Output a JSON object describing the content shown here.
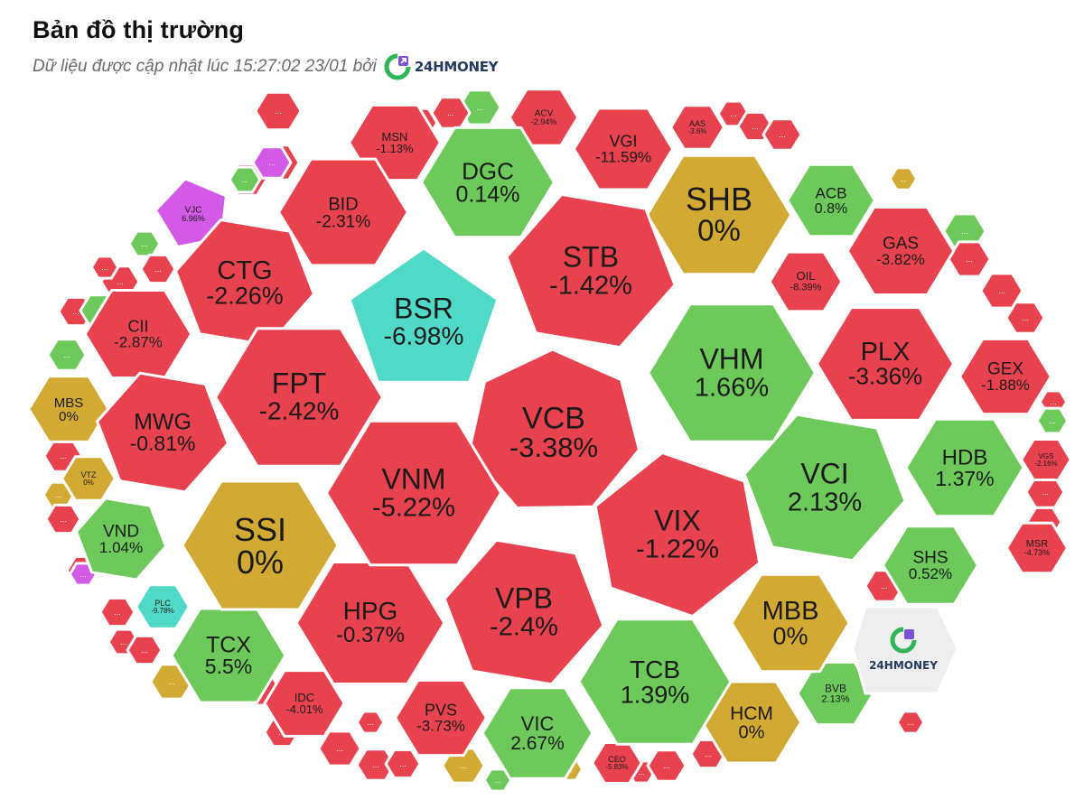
{
  "header": {
    "title": "Bản đồ thị trường",
    "subtitle": "Dữ liệu được cập nhật lúc 15:27:02 23/01 bởi",
    "brand": "24HMONEY"
  },
  "watermark": {
    "brand": "24HMONEY"
  },
  "colors": {
    "up": "#6cc95a",
    "down": "#e9424f",
    "flat": "#d2aa33",
    "ceiling": "#d25ae6",
    "floor": "#4fd9c6",
    "border": "#ffffff",
    "text": "#1a1a1a",
    "brand_green": "#2fb457",
    "brand_purple": "#7b52d6"
  },
  "cells": [
    {
      "ticker": "VCB",
      "change": "-3.38%",
      "status": "down"
    },
    {
      "ticker": "VNM",
      "change": "-5.22%",
      "status": "down"
    },
    {
      "ticker": "VIX",
      "change": "-1.22%",
      "status": "down"
    },
    {
      "ticker": "VPB",
      "change": "-2.4%",
      "status": "down"
    },
    {
      "ticker": "FPT",
      "change": "-2.42%",
      "status": "down"
    },
    {
      "ticker": "BSR",
      "change": "-6.98%",
      "status": "floor"
    },
    {
      "ticker": "STB",
      "change": "-1.42%",
      "status": "down"
    },
    {
      "ticker": "VHM",
      "change": "1.66%",
      "status": "up"
    },
    {
      "ticker": "VCI",
      "change": "2.13%",
      "status": "up"
    },
    {
      "ticker": "SSI",
      "change": "0%",
      "status": "flat"
    },
    {
      "ticker": "HPG",
      "change": "-0.37%",
      "status": "down"
    },
    {
      "ticker": "TCB",
      "change": "1.39%",
      "status": "up"
    },
    {
      "ticker": "PLX",
      "change": "-3.36%",
      "status": "down"
    },
    {
      "ticker": "SHB",
      "change": "0%",
      "status": "flat"
    },
    {
      "ticker": "CTG",
      "change": "-2.26%",
      "status": "down"
    },
    {
      "ticker": "MWG",
      "change": "-0.81%",
      "status": "down"
    },
    {
      "ticker": "DGC",
      "change": "0.14%",
      "status": "up"
    },
    {
      "ticker": "BID",
      "change": "-2.31%",
      "status": "down"
    },
    {
      "ticker": "HDB",
      "change": "1.37%",
      "status": "up"
    },
    {
      "ticker": "MBB",
      "change": "0%",
      "status": "flat"
    },
    {
      "ticker": "VIC",
      "change": "2.67%",
      "status": "up"
    },
    {
      "ticker": "TCX",
      "change": "5.5%",
      "status": "up"
    },
    {
      "ticker": "HCM",
      "change": "0%",
      "status": "flat"
    },
    {
      "ticker": "GEX",
      "change": "-1.88%",
      "status": "down"
    },
    {
      "ticker": "GAS",
      "change": "-3.82%",
      "status": "down"
    },
    {
      "ticker": "CII",
      "change": "-2.87%",
      "status": "down"
    },
    {
      "ticker": "VND",
      "change": "1.04%",
      "status": "up"
    },
    {
      "ticker": "SHS",
      "change": "0.52%",
      "status": "up"
    },
    {
      "ticker": "PVS",
      "change": "-3.73%",
      "status": "down"
    },
    {
      "ticker": "VGI",
      "change": "-11.59%",
      "status": "down"
    },
    {
      "ticker": "ACB",
      "change": "0.8%",
      "status": "up"
    },
    {
      "ticker": "MSN",
      "change": "-1.13%",
      "status": "down"
    },
    {
      "ticker": "IDC",
      "change": "-4.01%",
      "status": "down"
    },
    {
      "ticker": "MBS",
      "change": "0%",
      "status": "flat"
    },
    {
      "ticker": "OIL",
      "change": "-8.39%",
      "status": "down"
    },
    {
      "ticker": "BVB",
      "change": "2.13%",
      "status": "up"
    },
    {
      "ticker": "MSR",
      "change": "-4.73%",
      "status": "down"
    },
    {
      "ticker": "VJC",
      "change": "6.96%",
      "status": "ceiling"
    },
    {
      "ticker": "ACV",
      "change": "-2.94%",
      "status": "down"
    },
    {
      "ticker": "AAS",
      "change": "-3.6%",
      "status": "down"
    },
    {
      "ticker": "VGS",
      "change": "-2.16%",
      "status": "down"
    },
    {
      "ticker": "VTZ",
      "change": "0%",
      "status": "flat"
    },
    {
      "ticker": "PLC",
      "change": "-9.78%",
      "status": "floor"
    },
    {
      "ticker": "CEO",
      "change": "-5.83%",
      "status": "down"
    }
  ],
  "small_cells": [
    {
      "label": "...",
      "status": "down"
    },
    {
      "label": "...",
      "status": "down"
    },
    {
      "label": "...",
      "status": "down"
    },
    {
      "label": "...",
      "status": "up"
    },
    {
      "label": "...",
      "status": "down"
    },
    {
      "label": "...",
      "status": "down"
    },
    {
      "label": "...",
      "status": "down"
    },
    {
      "label": "...",
      "status": "down"
    },
    {
      "label": "...",
      "status": "up"
    },
    {
      "label": "...",
      "status": "up"
    },
    {
      "label": "...",
      "status": "down"
    },
    {
      "label": "...",
      "status": "flat"
    },
    {
      "label": "...",
      "status": "down"
    },
    {
      "label": "...",
      "status": "down"
    },
    {
      "label": "...",
      "status": "down"
    },
    {
      "label": "...",
      "status": "down"
    },
    {
      "label": "...",
      "status": "down"
    },
    {
      "label": "...",
      "status": "flat"
    },
    {
      "label": "...",
      "status": "down"
    },
    {
      "label": "...",
      "status": "down"
    },
    {
      "label": "...",
      "status": "down"
    },
    {
      "label": "...",
      "status": "down"
    },
    {
      "label": "...",
      "status": "down"
    },
    {
      "label": "...",
      "status": "down"
    },
    {
      "label": "...",
      "status": "flat"
    },
    {
      "label": "...",
      "status": "up"
    },
    {
      "label": "...",
      "status": "down"
    },
    {
      "label": "...",
      "status": "down"
    },
    {
      "label": "...",
      "status": "up"
    },
    {
      "label": "...",
      "status": "flat"
    },
    {
      "label": "...",
      "status": "down"
    },
    {
      "label": "...",
      "status": "down"
    },
    {
      "label": "...",
      "status": "down"
    },
    {
      "label": "...",
      "status": "down"
    },
    {
      "label": "...",
      "status": "down"
    },
    {
      "label": "...",
      "status": "down"
    },
    {
      "label": "...",
      "status": "ceiling"
    },
    {
      "label": "...",
      "status": "up"
    },
    {
      "label": "...",
      "status": "flat"
    },
    {
      "label": "...",
      "status": "up"
    },
    {
      "label": "...",
      "status": "down"
    },
    {
      "label": "...",
      "status": "down"
    },
    {
      "label": "...",
      "status": "down"
    },
    {
      "label": "...",
      "status": "down"
    },
    {
      "label": "...",
      "status": "up"
    },
    {
      "label": "...",
      "status": "down"
    },
    {
      "label": "...",
      "status": "down"
    },
    {
      "label": "...",
      "status": "ceiling"
    },
    {
      "label": "...",
      "status": "down"
    },
    {
      "label": "...",
      "status": "down"
    }
  ]
}
